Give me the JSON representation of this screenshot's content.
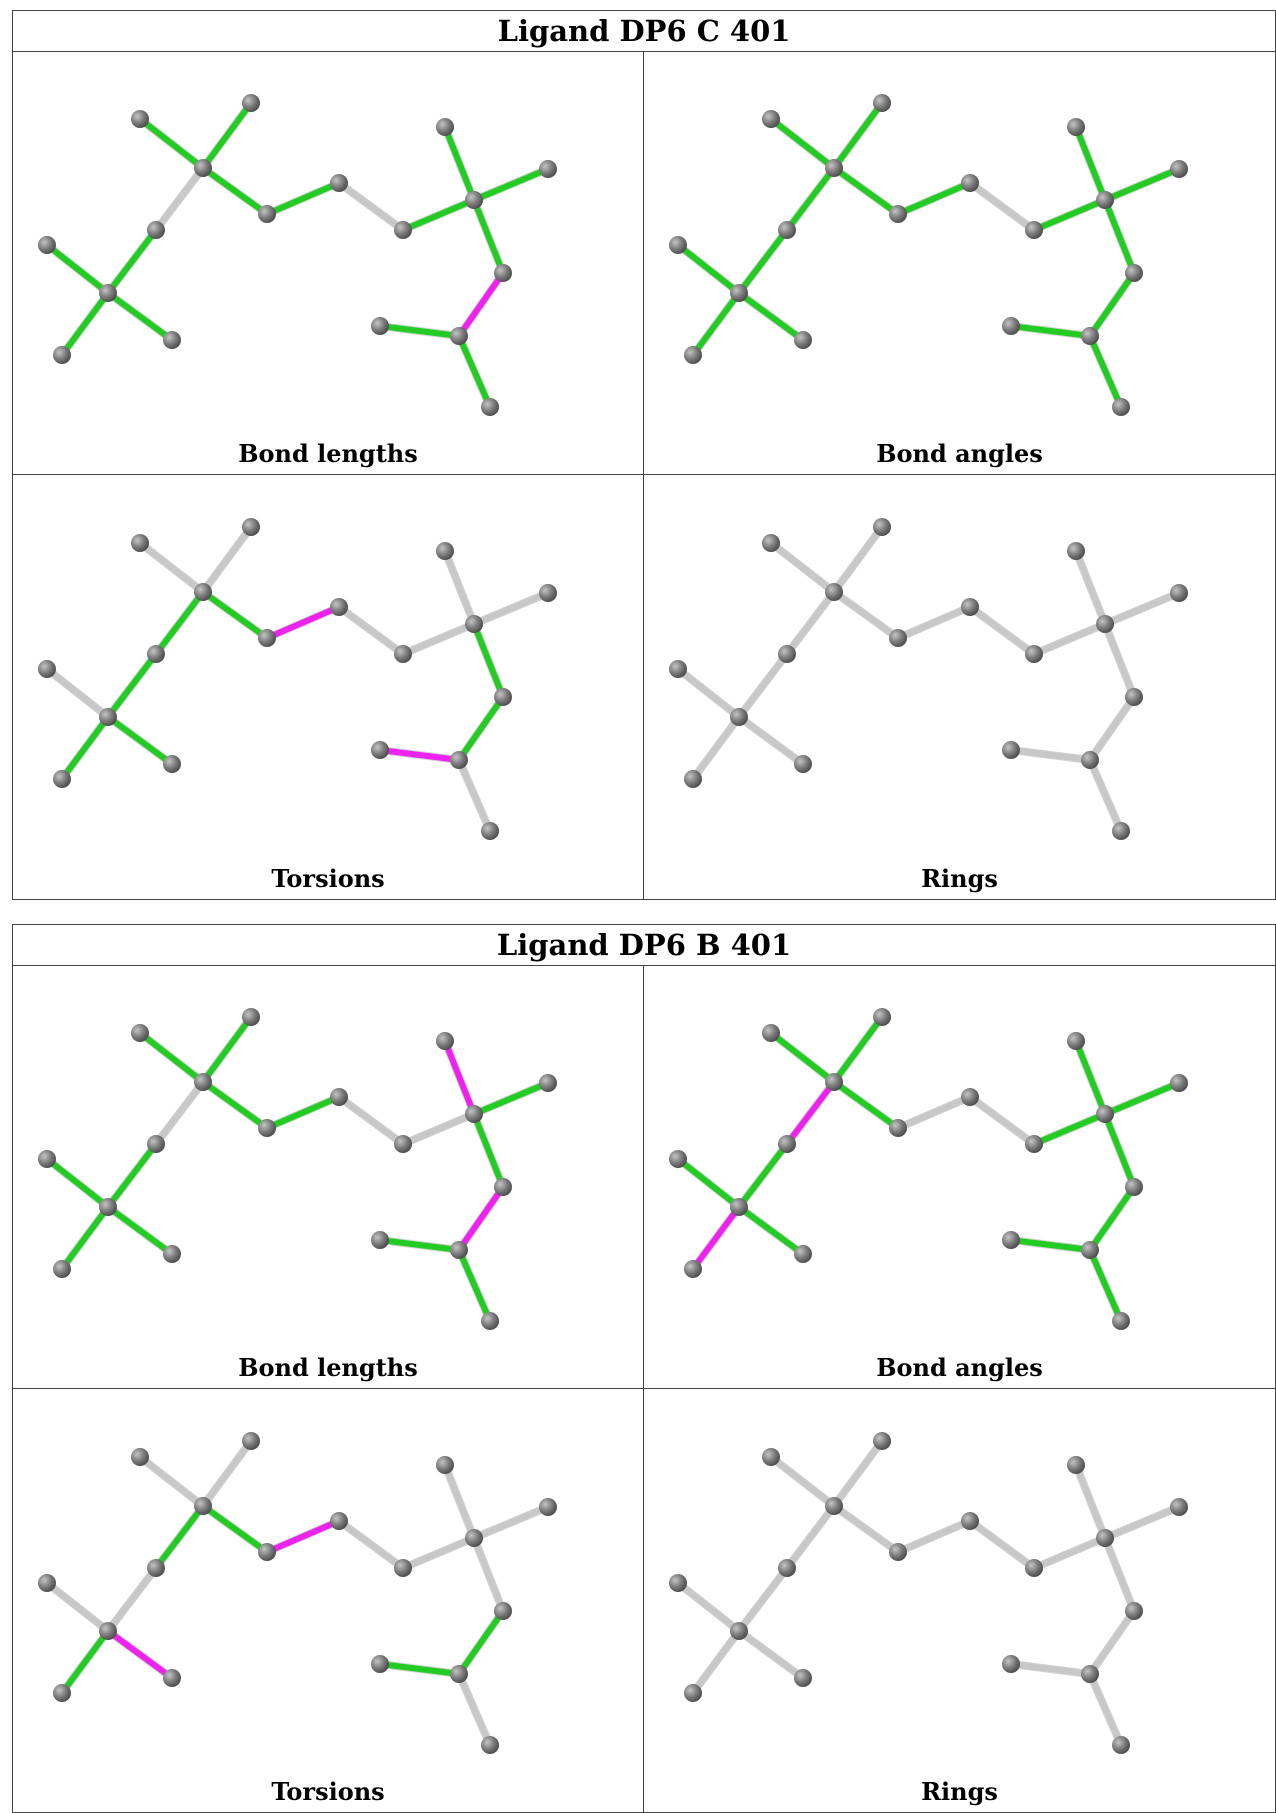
{
  "colors": {
    "ok": "#22cc22",
    "outlier": "#ee22ee",
    "none": "#c8c8c8",
    "atom": "#7a7a7a"
  },
  "ligands": [
    {
      "title": "Ligand DP6 C 401",
      "panels": [
        {
          "label": "Bond lengths",
          "highlight": {
            "green": [
              0,
              1,
              3,
              4,
              5,
              6,
              7,
              8,
              10,
              11,
              12,
              13,
              15,
              16
            ],
            "magenta": [
              14
            ]
          }
        },
        {
          "label": "Bond angles",
          "highlight": {
            "green": [
              0,
              1,
              2,
              3,
              4,
              5,
              6,
              7,
              8,
              10,
              11,
              12,
              13,
              14,
              15,
              16
            ],
            "magenta": []
          }
        },
        {
          "label": "Torsions",
          "highlight": {
            "green": [
              2,
              3,
              5,
              6,
              7,
              13,
              14
            ],
            "magenta": [
              8,
              15
            ]
          }
        },
        {
          "label": "Rings",
          "highlight": {
            "green": [],
            "magenta": []
          }
        }
      ]
    },
    {
      "title": "Ligand DP6 B 401",
      "panels": [
        {
          "label": "Bond lengths",
          "highlight": {
            "green": [
              0,
              1,
              3,
              4,
              5,
              6,
              7,
              8,
              12,
              13,
              15,
              16
            ],
            "magenta": [
              11,
              14
            ]
          }
        },
        {
          "label": "Bond angles",
          "highlight": {
            "green": [
              0,
              1,
              3,
              4,
              6,
              7,
              10,
              11,
              12,
              13,
              14,
              15,
              16
            ],
            "magenta": [
              2,
              5
            ]
          }
        },
        {
          "label": "Torsions",
          "highlight": {
            "green": [
              2,
              5,
              7,
              14,
              15
            ],
            "magenta": [
              6,
              8
            ]
          }
        },
        {
          "label": "Rings",
          "highlight": {
            "green": [],
            "magenta": []
          }
        }
      ]
    }
  ]
}
